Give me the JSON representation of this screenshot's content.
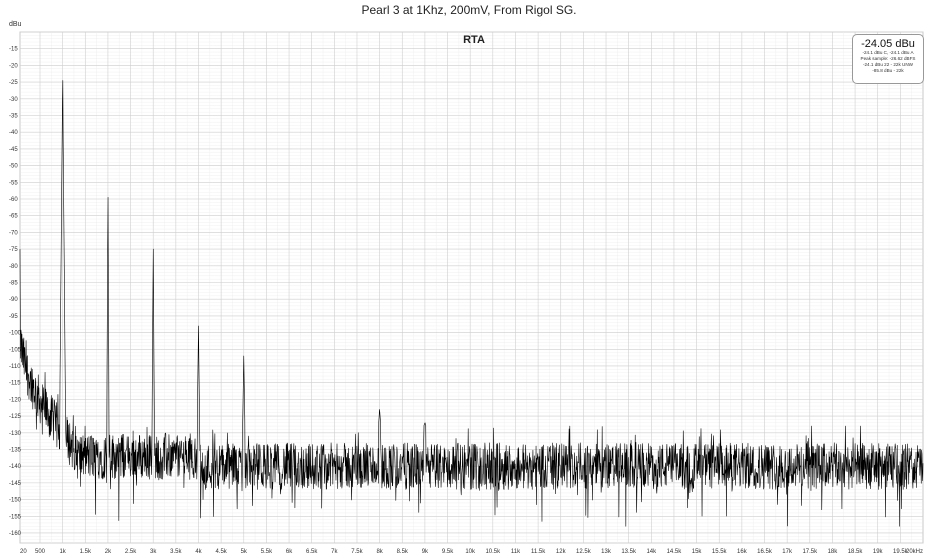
{
  "chart_data": {
    "type": "line",
    "title": "Pearl 3 at 1Khz, 200mV, From Rigol SG.",
    "plot_label": "RTA",
    "ylabel": "dBu",
    "xlabel": "",
    "xlim": [
      20,
      20000
    ],
    "ylim": [
      -163,
      -10
    ],
    "grid": true,
    "y_ticks": [
      -15,
      -20,
      -25,
      -30,
      -35,
      -40,
      -45,
      -50,
      -55,
      -60,
      -65,
      -70,
      -75,
      -80,
      -85,
      -90,
      -95,
      -100,
      -105,
      -110,
      -115,
      -120,
      -125,
      -130,
      -135,
      -140,
      -145,
      -150,
      -155,
      -160
    ],
    "x_ticks": [
      {
        "v": 20,
        "label": "20"
      },
      {
        "v": 500,
        "label": "500"
      },
      {
        "v": 1000,
        "label": "1k"
      },
      {
        "v": 1500,
        "label": "1.5k"
      },
      {
        "v": 2000,
        "label": "2k"
      },
      {
        "v": 2500,
        "label": "2.5k"
      },
      {
        "v": 3000,
        "label": "3k"
      },
      {
        "v": 3500,
        "label": "3.5k"
      },
      {
        "v": 4000,
        "label": "4k"
      },
      {
        "v": 4500,
        "label": "4.5k"
      },
      {
        "v": 5000,
        "label": "5k"
      },
      {
        "v": 5500,
        "label": "5.5k"
      },
      {
        "v": 6000,
        "label": "6k"
      },
      {
        "v": 6500,
        "label": "6.5k"
      },
      {
        "v": 7000,
        "label": "7k"
      },
      {
        "v": 7500,
        "label": "7.5k"
      },
      {
        "v": 8000,
        "label": "8k"
      },
      {
        "v": 8500,
        "label": "8.5k"
      },
      {
        "v": 9000,
        "label": "9k"
      },
      {
        "v": 9500,
        "label": "9.5k"
      },
      {
        "v": 10000,
        "label": "10k"
      },
      {
        "v": 10500,
        "label": "10.5k"
      },
      {
        "v": 11000,
        "label": "11k"
      },
      {
        "v": 11500,
        "label": "11.5k"
      },
      {
        "v": 12000,
        "label": "12k"
      },
      {
        "v": 12500,
        "label": "12.5k"
      },
      {
        "v": 13000,
        "label": "13k"
      },
      {
        "v": 13500,
        "label": "13.5k"
      },
      {
        "v": 14000,
        "label": "14k"
      },
      {
        "v": 14500,
        "label": "14.5k"
      },
      {
        "v": 15000,
        "label": "15k"
      },
      {
        "v": 15500,
        "label": "15.5k"
      },
      {
        "v": 16000,
        "label": "16k"
      },
      {
        "v": 16500,
        "label": "16.5k"
      },
      {
        "v": 17000,
        "label": "17k"
      },
      {
        "v": 17500,
        "label": "17.5k"
      },
      {
        "v": 18000,
        "label": "18k"
      },
      {
        "v": 18500,
        "label": "18.5k"
      },
      {
        "v": 19000,
        "label": "19k"
      },
      {
        "v": 19500,
        "label": "19.5k"
      },
      {
        "v": 20000,
        "label": "20kHz"
      }
    ],
    "series": [
      {
        "line_color": "#000000",
        "peaks": [
          {
            "x": 1000,
            "y": -24.5
          },
          {
            "x": 2000,
            "y": -59.5
          },
          {
            "x": 3000,
            "y": -75
          },
          {
            "x": 4000,
            "y": -98
          },
          {
            "x": 5000,
            "y": -107
          },
          {
            "x": 8000,
            "y": -123
          },
          {
            "x": 9000,
            "y": -127
          }
        ],
        "low_frequency_rise": {
          "x": 20,
          "y": -75
        },
        "noise_floor": {
          "mean": -140,
          "min": -158,
          "max": -128
        }
      }
    ],
    "readout": {
      "main": "-24.05 dBu",
      "lines": [
        "-24.1 dBu C, -24.1 dBu A",
        "Peak sample: -26.62 dBFS",
        "-24.1 dBu 22 - 22k UNW",
        "-85.8 dBu - 22k"
      ]
    }
  }
}
